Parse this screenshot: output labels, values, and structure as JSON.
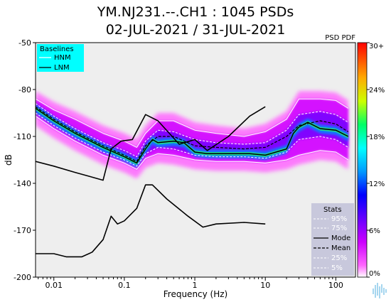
{
  "chart_data": {
    "type": "heatmap",
    "title": "YM.NJ231.--.CH1 : 1045 PSDs",
    "subtitle": "02-JUL-2021 / 31-JUL-2021",
    "xlabel": "Frequency (Hz)",
    "ylabel": "dB",
    "x_scale": "log",
    "xlim": [
      0.0055,
      190
    ],
    "ylim": [
      -200,
      -50
    ],
    "x_ticks": [
      0.01,
      0.1,
      1,
      10,
      100
    ],
    "x_tick_labels": [
      "0.01",
      "0.1",
      "1",
      "10",
      "100"
    ],
    "y_ticks": [
      -50,
      -80,
      -110,
      -140,
      -170,
      -200
    ],
    "y_tick_labels": [
      "-50",
      "-80",
      "-110",
      "-140",
      "-170",
      "-200"
    ],
    "colorbar": {
      "title": "PSD PDF",
      "ticks": [
        30,
        24,
        18,
        12,
        6,
        0
      ],
      "tick_labels": [
        "30+",
        "24%",
        "18%",
        "12%",
        "6%",
        "0%"
      ]
    },
    "baselines_legend": {
      "title": "Baselines",
      "entries": [
        "HNM",
        "LNM"
      ],
      "background": "#00ffff"
    },
    "stats_legend": {
      "title": "Stats",
      "entries": [
        "95%",
        "75%",
        "Mode",
        "Mean",
        "25%",
        "5%"
      ],
      "background": "#c8c8dc"
    },
    "series": [
      {
        "name": "HNM",
        "points": [
          [
            0.0055,
            -126
          ],
          [
            0.01,
            -129
          ],
          [
            0.02,
            -133
          ],
          [
            0.05,
            -138
          ],
          [
            0.065,
            -118
          ],
          [
            0.09,
            -113
          ],
          [
            0.13,
            -112
          ],
          [
            0.2,
            -96
          ],
          [
            0.3,
            -100
          ],
          [
            0.6,
            -115
          ],
          [
            1.0,
            -112
          ],
          [
            1.5,
            -119
          ],
          [
            3,
            -110
          ],
          [
            6,
            -97
          ],
          [
            10,
            -91
          ]
        ]
      },
      {
        "name": "LNM",
        "points": [
          [
            0.0055,
            -185
          ],
          [
            0.01,
            -185
          ],
          [
            0.015,
            -187
          ],
          [
            0.025,
            -187
          ],
          [
            0.035,
            -184
          ],
          [
            0.05,
            -176
          ],
          [
            0.065,
            -161
          ],
          [
            0.08,
            -166
          ],
          [
            0.1,
            -164
          ],
          [
            0.15,
            -156
          ],
          [
            0.2,
            -141
          ],
          [
            0.25,
            -141
          ],
          [
            0.4,
            -150
          ],
          [
            0.8,
            -161
          ],
          [
            1.3,
            -168
          ],
          [
            2,
            -166
          ],
          [
            5,
            -165
          ],
          [
            10,
            -166
          ]
        ]
      },
      {
        "name": "Mode",
        "points": [
          [
            0.0055,
            -92
          ],
          [
            0.01,
            -100
          ],
          [
            0.02,
            -108
          ],
          [
            0.05,
            -117
          ],
          [
            0.1,
            -123
          ],
          [
            0.15,
            -127
          ],
          [
            0.2,
            -118
          ],
          [
            0.25,
            -112
          ],
          [
            0.3,
            -114
          ],
          [
            0.5,
            -113
          ],
          [
            0.7,
            -114
          ],
          [
            1,
            -120
          ],
          [
            1.5,
            -121
          ],
          [
            3,
            -121
          ],
          [
            6,
            -121
          ],
          [
            10,
            -122
          ],
          [
            20,
            -118
          ],
          [
            25,
            -108
          ],
          [
            30,
            -104
          ],
          [
            40,
            -101
          ],
          [
            60,
            -105
          ],
          [
            100,
            -106
          ],
          [
            150,
            -110
          ]
        ]
      },
      {
        "name": "Mean",
        "points": [
          [
            0.0055,
            -91
          ],
          [
            0.01,
            -99
          ],
          [
            0.02,
            -107
          ],
          [
            0.05,
            -116
          ],
          [
            0.1,
            -122
          ],
          [
            0.15,
            -126
          ],
          [
            0.2,
            -116
          ],
          [
            0.3,
            -110
          ],
          [
            0.5,
            -110
          ],
          [
            1,
            -116
          ],
          [
            2,
            -117
          ],
          [
            5,
            -118
          ],
          [
            10,
            -117
          ],
          [
            20,
            -110
          ],
          [
            30,
            -103
          ],
          [
            60,
            -100
          ],
          [
            100,
            -102
          ],
          [
            150,
            -107
          ]
        ]
      },
      {
        "name": "95%",
        "points": [
          [
            0.0055,
            -86
          ],
          [
            0.01,
            -93
          ],
          [
            0.02,
            -99
          ],
          [
            0.05,
            -108
          ],
          [
            0.1,
            -113
          ],
          [
            0.15,
            -117
          ],
          [
            0.2,
            -108
          ],
          [
            0.3,
            -100
          ],
          [
            0.5,
            -100
          ],
          [
            1,
            -106
          ],
          [
            2,
            -108
          ],
          [
            5,
            -110
          ],
          [
            10,
            -107
          ],
          [
            20,
            -99
          ],
          [
            30,
            -86
          ],
          [
            60,
            -86
          ],
          [
            100,
            -87
          ],
          [
            150,
            -92
          ]
        ]
      },
      {
        "name": "75%",
        "points": [
          [
            0.0055,
            -89
          ],
          [
            0.01,
            -97
          ],
          [
            0.02,
            -105
          ],
          [
            0.05,
            -114
          ],
          [
            0.1,
            -119
          ],
          [
            0.15,
            -123
          ],
          [
            0.2,
            -113
          ],
          [
            0.3,
            -106
          ],
          [
            0.5,
            -107
          ],
          [
            1,
            -112
          ],
          [
            2,
            -114
          ],
          [
            5,
            -115
          ],
          [
            10,
            -114
          ],
          [
            20,
            -106
          ],
          [
            30,
            -96
          ],
          [
            60,
            -94
          ],
          [
            100,
            -96
          ],
          [
            150,
            -101
          ]
        ]
      },
      {
        "name": "25%",
        "points": [
          [
            0.0055,
            -95
          ],
          [
            0.01,
            -103
          ],
          [
            0.02,
            -111
          ],
          [
            0.05,
            -120
          ],
          [
            0.1,
            -125
          ],
          [
            0.15,
            -129
          ],
          [
            0.2,
            -121
          ],
          [
            0.3,
            -117
          ],
          [
            0.5,
            -118
          ],
          [
            1,
            -122
          ],
          [
            2,
            -123
          ],
          [
            5,
            -123
          ],
          [
            10,
            -124
          ],
          [
            20,
            -120
          ],
          [
            30,
            -112
          ],
          [
            60,
            -110
          ],
          [
            100,
            -112
          ],
          [
            150,
            -117
          ]
        ]
      },
      {
        "name": "5%",
        "points": [
          [
            0.0055,
            -97
          ],
          [
            0.01,
            -105
          ],
          [
            0.02,
            -113
          ],
          [
            0.05,
            -122
          ],
          [
            0.1,
            -127
          ],
          [
            0.15,
            -131
          ],
          [
            0.2,
            -124
          ],
          [
            0.3,
            -121
          ],
          [
            0.5,
            -122
          ],
          [
            1,
            -125
          ],
          [
            2,
            -126
          ],
          [
            5,
            -126
          ],
          [
            10,
            -127
          ],
          [
            20,
            -125
          ],
          [
            30,
            -122
          ],
          [
            60,
            -119
          ],
          [
            100,
            -120
          ],
          [
            150,
            -125
          ]
        ]
      }
    ]
  }
}
